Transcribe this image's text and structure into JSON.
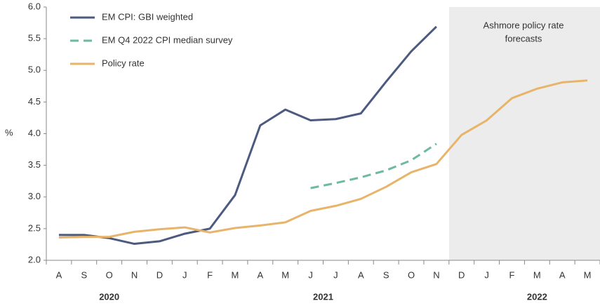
{
  "chart_data": {
    "type": "line",
    "y_label": "%",
    "annotation": [
      "Ashmore policy rate",
      "forecasts"
    ],
    "categories": [
      "A",
      "S",
      "O",
      "N",
      "D",
      "J",
      "F",
      "M",
      "A",
      "M",
      "J",
      "J",
      "A",
      "S",
      "O",
      "N",
      "D",
      "J",
      "F",
      "M",
      "A",
      "M"
    ],
    "year_groups": [
      {
        "label": "2020",
        "start": 0,
        "end": 4
      },
      {
        "label": "2021",
        "start": 5,
        "end": 16
      },
      {
        "label": "2022",
        "start": 17,
        "end": 21
      }
    ],
    "series": [
      {
        "name": "EM CPI: GBI weighted",
        "color": "#4d5a80",
        "dashed": false,
        "values": [
          2.4,
          2.4,
          2.35,
          2.26,
          2.3,
          2.42,
          2.5,
          3.03,
          4.13,
          4.38,
          4.21,
          4.23,
          4.32,
          4.82,
          5.3,
          5.69,
          null,
          null,
          null,
          null,
          null,
          null
        ]
      },
      {
        "name": "EM Q4 2022 CPI median survey",
        "color": "#6dba9c",
        "dashed": true,
        "values": [
          null,
          null,
          null,
          null,
          null,
          null,
          null,
          null,
          null,
          null,
          3.14,
          3.22,
          3.31,
          3.42,
          3.58,
          3.84,
          null,
          null,
          null,
          null,
          null,
          null
        ]
      },
      {
        "name": "Policy rate",
        "color": "#e8b46a",
        "dashed": false,
        "values": [
          2.36,
          2.37,
          2.37,
          2.45,
          2.49,
          2.52,
          2.44,
          2.51,
          2.55,
          2.6,
          2.78,
          2.86,
          2.97,
          3.16,
          3.39,
          3.52,
          3.98,
          4.21,
          4.56,
          4.71,
          4.81,
          4.84
        ]
      }
    ],
    "ylim": [
      2,
      6
    ],
    "yticks": [
      {
        "value": 2,
        "label": "2.0"
      },
      {
        "value": 2.5,
        "label": "2.5"
      },
      {
        "value": 3,
        "label": "3.0"
      },
      {
        "value": 3.5,
        "label": "3.5"
      },
      {
        "value": 4,
        "label": "4.0"
      },
      {
        "value": 4.5,
        "label": "4.5"
      },
      {
        "value": 5,
        "label": "5.0"
      },
      {
        "value": 5.5,
        "label": "5.5"
      },
      {
        "value": 6,
        "label": "6.0"
      }
    ]
  }
}
